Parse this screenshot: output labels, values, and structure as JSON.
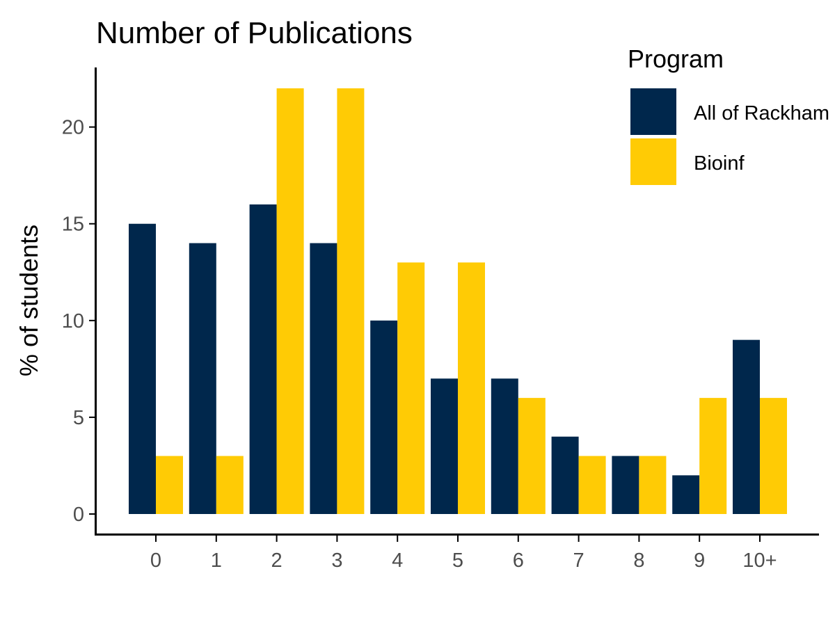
{
  "chart_data": {
    "type": "bar",
    "title": "Number of Publications",
    "xlabel": "",
    "ylabel": "% of students",
    "categories": [
      "0",
      "1",
      "2",
      "3",
      "4",
      "5",
      "6",
      "7",
      "8",
      "9",
      "10+"
    ],
    "series": [
      {
        "name": "All of Rackham",
        "color": "#00274c",
        "values": [
          15,
          14,
          16,
          14,
          10,
          7,
          7,
          4,
          3,
          2,
          9
        ]
      },
      {
        "name": "Bioinf",
        "color": "#ffcb05",
        "values": [
          3,
          3,
          22,
          22,
          13,
          13,
          6,
          3,
          3,
          6,
          6
        ]
      }
    ],
    "ylim": [
      0,
      22
    ],
    "yticks": [
      "0",
      "5",
      "10",
      "15",
      "20"
    ],
    "grid": false,
    "legend": {
      "title": "Program",
      "position": "top-right"
    }
  }
}
